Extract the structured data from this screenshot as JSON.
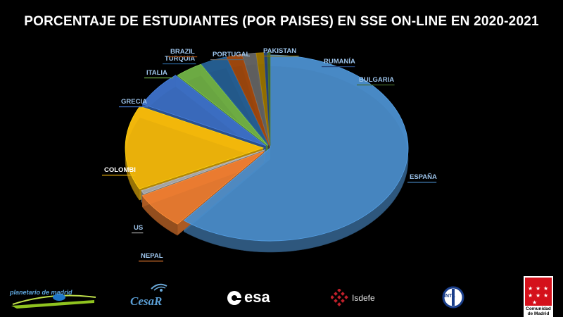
{
  "title": "PORCENTAJE DE ESTUDIANTES (POR PAISES) EN SSE ON-LINE EN 2020-2021",
  "chart_data": {
    "type": "pie",
    "style": "3d-exploded",
    "title": "PORCENTAJE DE ESTUDIANTES (POR PAISES) EN SSE ON-LINE EN 2020-2021",
    "slices": [
      {
        "label": "ESPAÑA",
        "value": 61.0,
        "color": "#4a8cc9"
      },
      {
        "label": "NEPAL",
        "value": 6.4,
        "color": "#ed7d31"
      },
      {
        "label": "US",
        "value": 0.6,
        "color": "#a5a5a5"
      },
      {
        "label": "COLOMBI",
        "value": 14.7,
        "color": "#f5b90b"
      },
      {
        "label": "GRECIA",
        "value": 6.3,
        "color": "#3c6fc4"
      },
      {
        "label": "ITALIA",
        "value": 3.3,
        "color": "#6fae45"
      },
      {
        "label": "TURQUIA",
        "value": 3.1,
        "color": "#255e91"
      },
      {
        "label": "BRAZIL",
        "value": 1.8,
        "color": "#9e480e"
      },
      {
        "label": "PORTUGAL",
        "value": 1.6,
        "color": "#636363"
      },
      {
        "label": "PAKISTAN",
        "value": 0.9,
        "color": "#997300"
      },
      {
        "label": "RUMANÍA",
        "value": 0.4,
        "color": "#264478"
      },
      {
        "label": "BULGARIA",
        "value": 0.3,
        "color": "#43682b"
      }
    ]
  },
  "logos": {
    "planetario": "planetario de madrid",
    "cesar": "CesaR",
    "esa": "esa",
    "isdefe": "Isdefe",
    "inta": "INTA",
    "comunidad_line1": "Comunidad",
    "comunidad_line2": "de Madrid"
  }
}
